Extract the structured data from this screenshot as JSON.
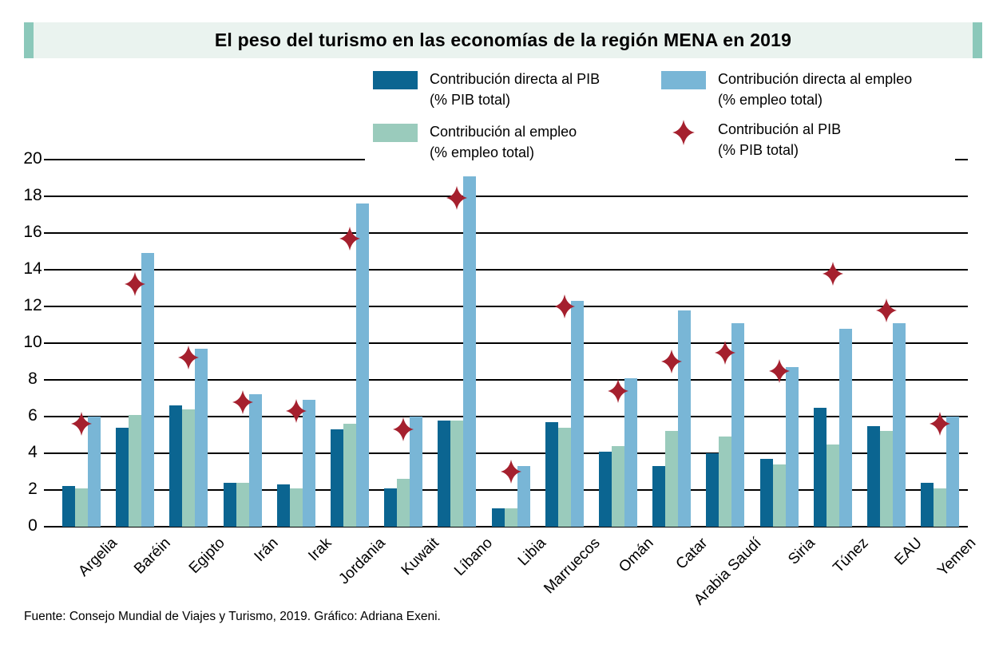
{
  "title": "El peso del turismo en las economías de la región MENA en 2019",
  "footer": "Fuente: Consejo Mundial de Viajes y Turismo, 2019. Gráfico: Adriana Exeni.",
  "colors": {
    "direct_gdp_bar": "#0b6591",
    "employment_bar": "#9acbbc",
    "direct_employment_bar": "#79b6d6",
    "gdp_diamond": "#a5202e",
    "title_bar_bg": "#eaf3ef",
    "title_bar_accent": "#8bc8ba",
    "gridline": "#000000"
  },
  "legend": {
    "items": [
      {
        "label_line1": "Contribución directa al PIB",
        "label_line2": "(% PIB total)",
        "marker": "bar",
        "color": "#0b6591"
      },
      {
        "label_line1": "Contribución directa al empleo",
        "label_line2": "(% empleo total)",
        "marker": "bar",
        "color": "#79b6d6"
      },
      {
        "label_line1": "Contribución al empleo",
        "label_line2": "(% empleo total)",
        "marker": "bar",
        "color": "#9acbbc"
      },
      {
        "label_line1": "Contribución al PIB",
        "label_line2": "(% PIB total)",
        "marker": "diamond",
        "color": "#a5202e"
      }
    ]
  },
  "chart_data": {
    "type": "bar",
    "title": "El peso del turismo en las economías de la región MENA en 2019",
    "xlabel": "",
    "ylabel": "",
    "ylim": [
      0,
      20
    ],
    "yticks": [
      0,
      2,
      4,
      6,
      8,
      10,
      12,
      14,
      16,
      18,
      20
    ],
    "grid": true,
    "legend_position": "top",
    "categories": [
      "Argelia",
      "Baréin",
      "Egipto",
      "Irán",
      "Irak",
      "Jordania",
      "Kuwait",
      "Líbano",
      "Libia",
      "Marruecos",
      "Omán",
      "Catar",
      "Arabia Saudí",
      "Siria",
      "Túnez",
      "EAU",
      "Yemen"
    ],
    "series": [
      {
        "name": "Contribución directa al PIB (% PIB total)",
        "style": "bar",
        "color": "#0b6591",
        "values": [
          2.2,
          5.4,
          6.6,
          2.4,
          2.3,
          5.3,
          2.1,
          5.8,
          1.0,
          5.7,
          4.1,
          3.3,
          4.0,
          3.7,
          6.5,
          5.5,
          2.4
        ]
      },
      {
        "name": "Contribución al empleo (% empleo total)",
        "style": "bar",
        "color": "#9acbbc",
        "values": [
          2.1,
          6.1,
          6.4,
          2.4,
          2.1,
          5.6,
          2.6,
          5.8,
          1.0,
          5.4,
          4.4,
          5.2,
          4.9,
          3.4,
          4.5,
          5.2,
          2.1
        ]
      },
      {
        "name": "Contribución directa al empleo (% empleo total)",
        "style": "bar",
        "color": "#79b6d6",
        "values": [
          6.0,
          14.9,
          9.7,
          7.2,
          6.9,
          17.6,
          6.0,
          19.1,
          3.3,
          12.3,
          8.1,
          11.8,
          11.1,
          8.7,
          10.8,
          11.1,
          6.0
        ]
      },
      {
        "name": "Contribución al PIB (% PIB total)",
        "style": "diamond",
        "color": "#a5202e",
        "values": [
          5.6,
          13.2,
          9.2,
          6.8,
          6.3,
          15.7,
          5.3,
          17.9,
          3.0,
          12.0,
          7.4,
          9.0,
          9.5,
          8.5,
          13.8,
          11.8,
          5.6
        ]
      }
    ]
  }
}
